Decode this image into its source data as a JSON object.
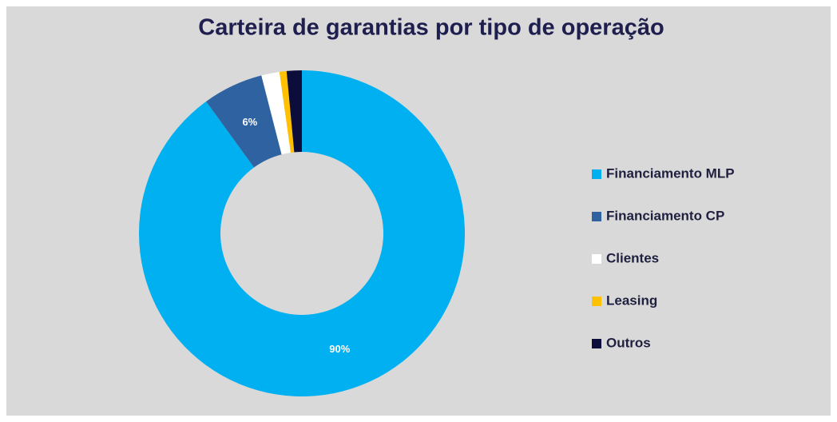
{
  "chart_data": {
    "type": "donut",
    "title": "Carteira de garantias por tipo de operação",
    "categories": [
      "Financiamento MLP",
      "Financiamento CP",
      "Clientes",
      "Leasing",
      "Outros"
    ],
    "values": [
      90,
      6,
      1.8,
      0.7,
      1.5
    ],
    "value_labels": [
      "90%",
      "6%",
      null,
      null,
      null
    ],
    "colors": [
      "#00b0f0",
      "#2e62a0",
      "#ffffff",
      "#ffc000",
      "#0d0d3b"
    ],
    "legend": "right"
  }
}
